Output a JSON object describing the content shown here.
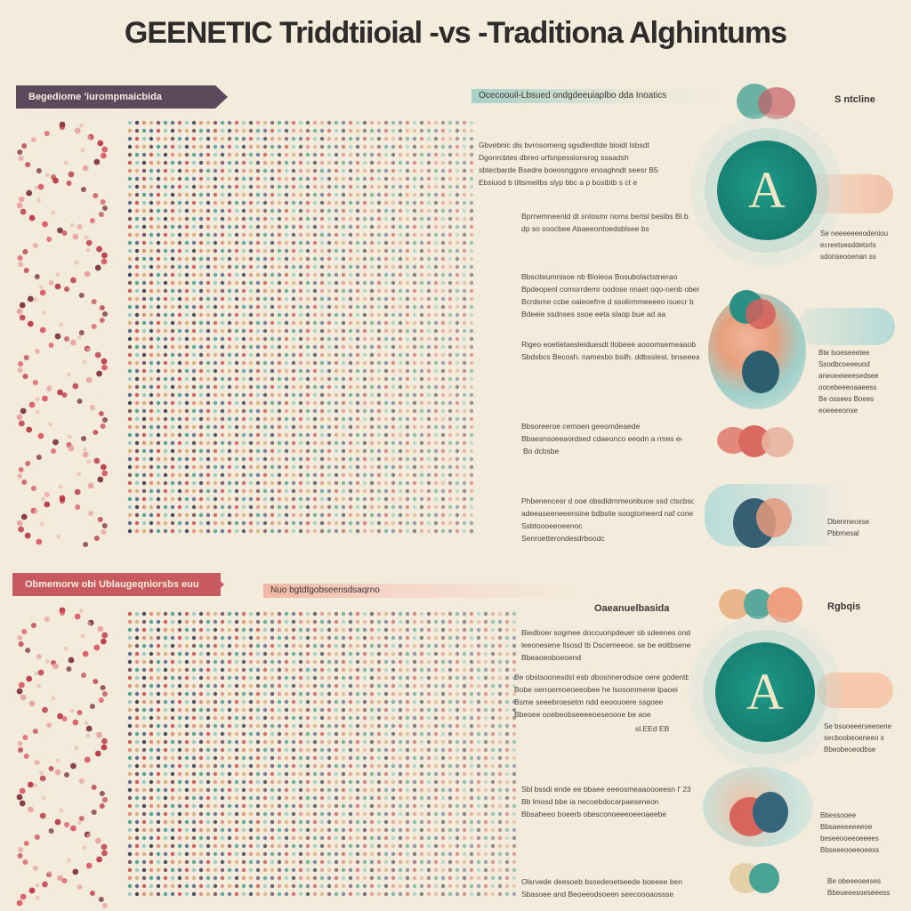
{
  "title": "GEENETIC Triddtiioial -vs -Traditiona Alghintums",
  "top": {
    "tag": "Begediome 'iurompmaicbida",
    "header": "Ocecoouil-Lbsued ondgdeeuiaplbo dda Inoatics",
    "side_label": "S ntcline",
    "text_blocks": [
      [
        "Gbvebnic dis bvrosomeng sgsdlerdtde bioidt lsbsdt",
        "Dgonrcbtes dbreo urfsnpessionsrog ssaadsh",
        "sbtecbarde Bsedre boeosnggnre enoaghndt seesr B5",
        "Ebsiuod b tiltsmeilbs slyp bbc a p bostbtb s ct e"
      ],
      [
        "Bprnemneenld dt sntosmr noms bertsl besibs  Bl.b",
        "dp  so soocbee Abaeeontoedsblsee bs"
      ],
      [
        "Bbsciteumnisoe   nb Bioieoa Bosubolactstnerao",
        "Bpdeopenl comorrdemr oodose nnaet oqo-nenb obenr",
        "Bcrdsme ccbe oaieoefrre d ssolirmmeeeeo isuecr b",
        "Bdeeie ssdnses ssoe eeta slaop bue ad  aa"
      ],
      [
        "Rigeo eoetietaesleiduesdt tlobeee aooomsemeaaob",
        "Sbdsbcs Becosh. namesbo bsilh. ddbsslest. bnseeeaas"
      ],
      [
        "Bbsoreeroe cemoen geeomdeaede",
        "Bbaesnsoeeaordsed cdaeonco eeodn a rmes ee"
      ],
      [
        "Bo dcbsbe"
      ],
      [
        "Phbenencesr d ooe obsdldrnmeonbuoe ssd ctscbsonns",
        "adeeaseeneeensine bdbstie soogtomeerd naf cone",
        "Ssbtoooeeoeenoc",
        "Senroetterondesdrboodc"
      ]
    ],
    "right_notes": [
      [
        "Se neeeeeeeodeniou",
        "ecreetsesddetsrls",
        "sdonseooenan ss"
      ],
      [
        "Bte lsoeseeetee",
        "Ssodbcoeeeuod",
        "aneoeeieeesedsee",
        "oocebeeeoaaeess",
        "Be ossees Boees",
        "eoeeeeonse"
      ],
      [
        "Dbenmecese",
        "Pbbmesal"
      ]
    ],
    "badge_letter": "A"
  },
  "bottom": {
    "tag": "Obmemorw obi Ublaugeqniorsbs euu",
    "header": "Nuo bgtdtgobseensdsaqrno",
    "side_label_left": "Oaeanuelbasida",
    "side_label_right": "Rgbqis",
    "text_blocks": [
      [
        "Biedboer sogmee doccuonpdeuer sb sdeenes ond",
        "leeonesene ltsosd tb  Dscemeeoe. se be eoltbsenee aeee",
        "Bbeaoeoboeoend"
      ],
      [
        "Be obstsoonesdst esb dbosnnerodsoe oere godentb",
        "Bobe oerroemoeoeeobee he lsosommene lpaoei",
        "Bsme seeebroesetm ndd eeoouoere ssgoee",
        "Bbeoee ooebeobseeeeoeseoooe be  aoe"
      ],
      [
        "sl.EEd EB"
      ],
      [
        "Sbl bssdi ende ee bbaee eeeosmeaaoooeesn l' 23,",
        "Bb lmosd bbe  ia necoebdocarpaeseneon",
        "Bbsaheeo boeerb obesconoeeeoeeoaeebe"
      ],
      [
        "Olsrvede deesoeb bssedeoetseede boeeee ben",
        "Sbasoee and Beoeeodsoeen seecoooaossse"
      ]
    ],
    "right_notes": [
      [
        "Se bsuoeeerseeoene",
        "secboobeoeneeo s",
        "Bbeobeoeodbse"
      ],
      [
        "Bbessooee",
        "Bbsaeeeeeeeoe",
        "beseeooeeoeeees",
        "Bbseeeooeeoeess"
      ],
      [
        "Be obeeeoeeses",
        "Bbeueeesoeseeess"
      ]
    ],
    "badge_letter": "A"
  },
  "colors": {
    "background": "#f3ecdc",
    "teal": "#1f9a88",
    "coral": "#d8645e",
    "plum": "#5c4a5c",
    "peach": "#f0b7a4"
  }
}
